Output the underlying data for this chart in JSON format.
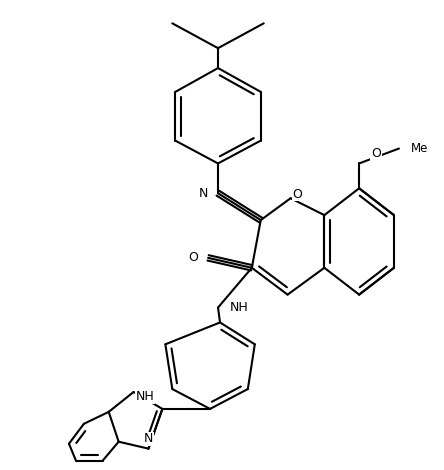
{
  "background_color": "#ffffff",
  "lw": 1.5,
  "figsize": [
    4.44,
    4.7
  ],
  "dpi": 100,
  "xlim": [
    0,
    444
  ],
  "ylim": [
    0,
    470
  ]
}
